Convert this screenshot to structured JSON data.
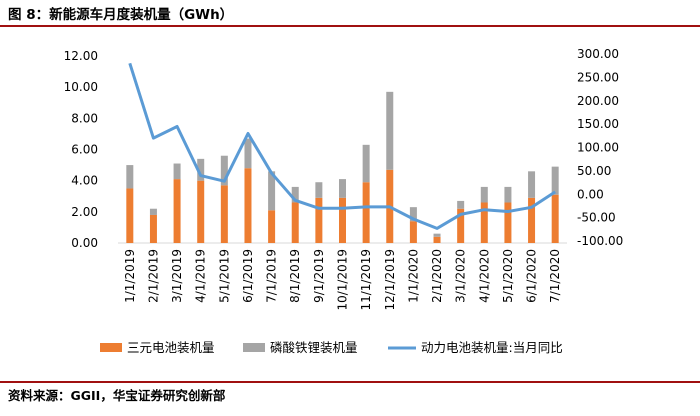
{
  "header": {
    "figure_title": "图 8：新能源车月度装机量（GWh）"
  },
  "footer": {
    "source": "资料来源：GGII，华宝证券研究创新部"
  },
  "colors": {
    "ternary": "#ed7d31",
    "lfp": "#a5a5a5",
    "yoy": "#5b9bd5",
    "rule": "#a01010"
  },
  "chart_data": {
    "type": "bar",
    "title": "",
    "stacked": true,
    "categories": [
      "1/1/2019",
      "2/1/2019",
      "3/1/2019",
      "4/1/2019",
      "5/1/2019",
      "6/1/2019",
      "7/1/2019",
      "8/1/2019",
      "9/1/2019",
      "10/1/2019",
      "11/1/2019",
      "12/1/2019",
      "1/1/2020",
      "2/1/2020",
      "3/1/2020",
      "4/1/2020",
      "5/1/2020",
      "6/1/2020",
      "7/1/2020"
    ],
    "left_axis": {
      "ylim": [
        0,
        12
      ],
      "tick_labels": [
        "0.00",
        "2.00",
        "4.00",
        "6.00",
        "8.00",
        "10.00",
        "12.00"
      ]
    },
    "right_axis": {
      "ylim": [
        -100,
        300
      ],
      "tick_labels": [
        "-100.00",
        "-50.00",
        "0.00",
        "50.00",
        "100.00",
        "150.00",
        "200.00",
        "250.00",
        "300.00"
      ]
    },
    "series": [
      {
        "name": "三元电池装机量",
        "type": "bar",
        "axis": "left",
        "values": [
          3.5,
          1.8,
          4.1,
          4.0,
          3.7,
          4.8,
          2.1,
          2.6,
          2.9,
          2.9,
          3.9,
          4.7,
          1.4,
          0.4,
          2.2,
          2.6,
          2.6,
          2.9,
          3.1
        ]
      },
      {
        "name": "磷酸铁锂装机量",
        "type": "bar",
        "axis": "left",
        "values": [
          1.5,
          0.4,
          1.0,
          1.4,
          1.9,
          1.9,
          2.5,
          1.0,
          1.0,
          1.2,
          2.4,
          5.0,
          0.9,
          0.2,
          0.5,
          1.0,
          1.0,
          1.7,
          1.8
        ]
      },
      {
        "name": "动力电池装机量:当月同比",
        "type": "line",
        "axis": "right",
        "values": [
          280,
          120,
          145,
          40,
          28,
          130,
          45,
          -13,
          -30,
          -30,
          -27,
          -27,
          -53,
          -73,
          -43,
          -33,
          -37,
          -28,
          5
        ]
      }
    ],
    "grid": false,
    "legend_position": "bottom"
  }
}
